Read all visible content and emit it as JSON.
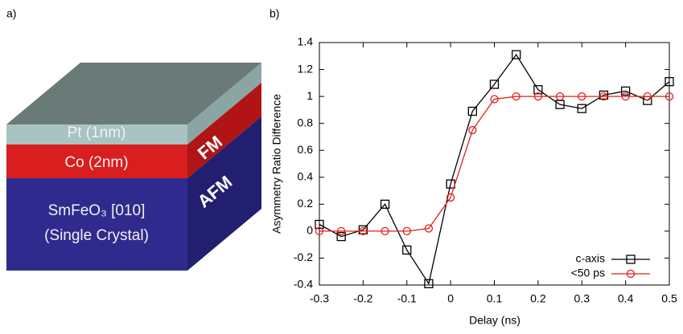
{
  "panel_labels": [
    "a)",
    "b)"
  ],
  "diagram": {
    "layers": [
      "Pt (1nm)",
      "Co (2nm)",
      "SmFeO₃ [010]",
      "(Single Crystal)"
    ],
    "side_labels": [
      "FM",
      "AFM"
    ]
  },
  "chart_data": {
    "type": "line",
    "x_label": "Delay (ns)",
    "y_label": "Asymmetry Ratio Difference",
    "x": [
      -0.3,
      -0.25,
      -0.2,
      -0.15,
      -0.1,
      -0.05,
      0,
      0.05,
      0.1,
      0.15,
      0.2,
      0.25,
      0.3,
      0.35,
      0.4,
      0.45,
      0.5
    ],
    "series": [
      {
        "name": "c-axis",
        "color": "#000000",
        "marker": "square",
        "values": [
          0.05,
          -0.04,
          0.01,
          0.2,
          -0.14,
          -0.39,
          0.35,
          0.89,
          1.09,
          1.31,
          1.05,
          0.94,
          0.91,
          1.01,
          1.04,
          0.97,
          1.11
        ]
      },
      {
        "name": "<50 ps",
        "color": "#e0201c",
        "marker": "circle",
        "values": [
          0,
          0,
          0,
          0,
          0,
          0.02,
          0.25,
          0.75,
          0.98,
          1,
          1,
          1,
          1,
          1,
          1,
          1,
          1
        ]
      }
    ],
    "xlim": [
      -0.3,
      0.5
    ],
    "ylim": [
      -0.4,
      1.4
    ],
    "xticks": [
      -0.3,
      -0.2,
      -0.1,
      0,
      0.1,
      0.2,
      0.3,
      0.4,
      0.5
    ],
    "yticks": [
      -0.4,
      -0.2,
      0,
      0.2,
      0.4,
      0.6,
      0.8,
      1,
      1.2,
      1.4
    ],
    "legend": "lower-right"
  }
}
